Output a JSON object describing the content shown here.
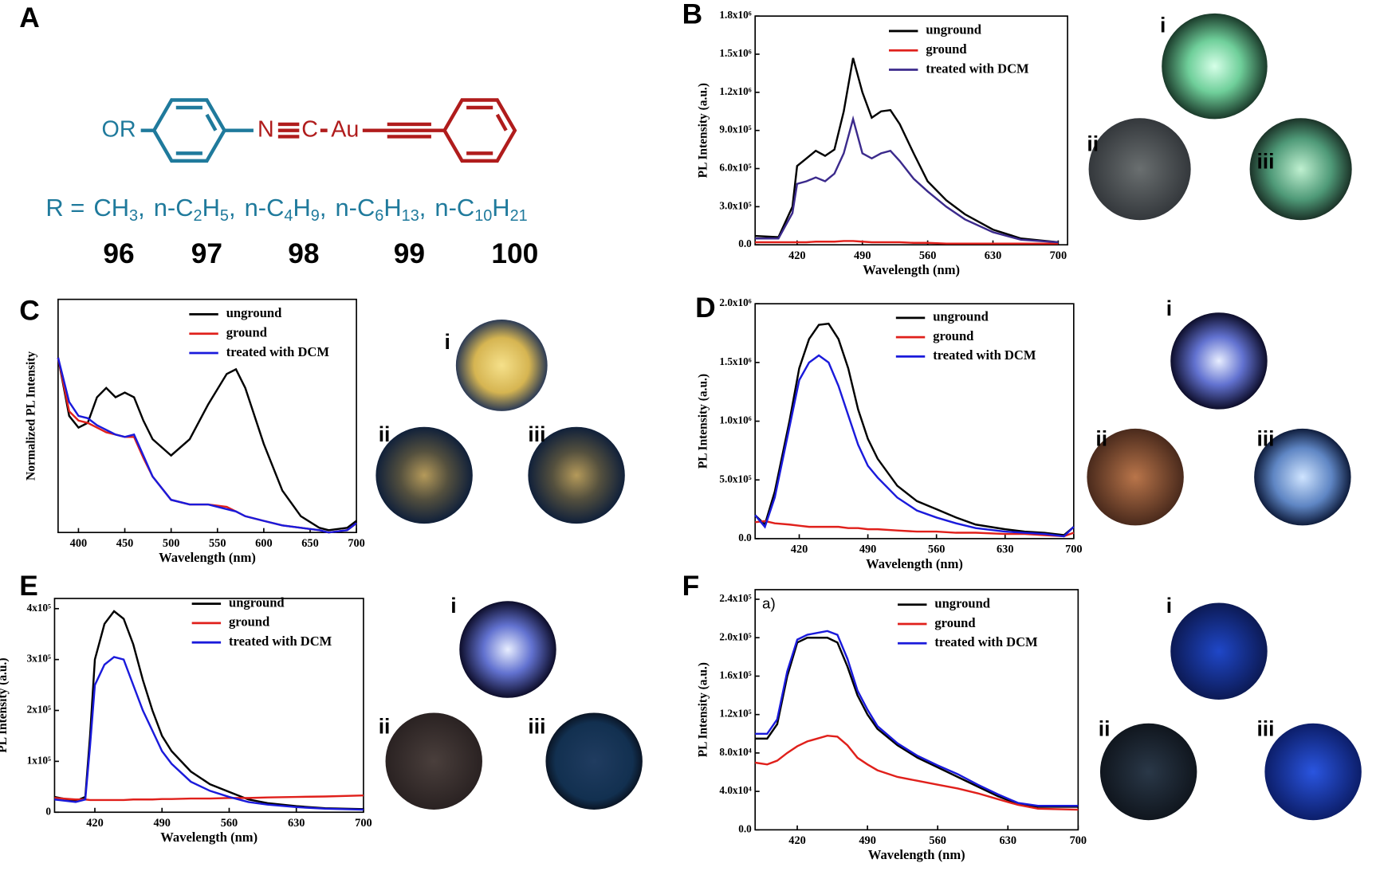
{
  "panel_a": {
    "label": "A",
    "substituent": "OR",
    "n": "N",
    "c": "C",
    "metal": "Au",
    "r_label": "R =",
    "r_groups": [
      [
        "CH",
        "3",
        ","
      ],
      [
        "n-C",
        "2",
        "H",
        "5",
        ","
      ],
      [
        "n-C",
        "4",
        "H",
        "9",
        ","
      ],
      [
        "n-C",
        "6",
        "H",
        "13",
        ","
      ],
      [
        "n-C",
        "10",
        "H",
        "21"
      ]
    ],
    "compounds": [
      "96",
      "97",
      "98",
      "99",
      "100"
    ]
  },
  "chart_data": [
    {
      "type": "line",
      "label": "B",
      "xlabel": "Wavelength (nm)",
      "ylabel": "PL Intensity (a.u.)",
      "xlim": [
        375,
        710
      ],
      "xticks": [
        420,
        490,
        560,
        630,
        700
      ],
      "ylim": [
        0,
        1800000
      ],
      "yticks": [
        {
          "value": 0,
          "label": "0.0"
        },
        {
          "value": 300000,
          "label": "3.0x10⁵"
        },
        {
          "value": 600000,
          "label": "6.0x10⁵"
        },
        {
          "value": 900000,
          "label": "9.0x10⁵"
        },
        {
          "value": 1200000,
          "label": "1.2x10⁶"
        },
        {
          "value": 1500000,
          "label": "1.5x10⁶"
        },
        {
          "value": 1800000,
          "label": "1.8x10⁶"
        }
      ],
      "x": [
        375,
        400,
        415,
        420,
        430,
        440,
        450,
        460,
        470,
        480,
        490,
        500,
        510,
        520,
        530,
        545,
        560,
        580,
        600,
        630,
        660,
        700
      ],
      "series": [
        {
          "name": "unground",
          "color": "#000000",
          "values": [
            70000,
            60000,
            300000,
            620000,
            680000,
            740000,
            700000,
            750000,
            1050000,
            1470000,
            1200000,
            1000000,
            1050000,
            1060000,
            950000,
            720000,
            500000,
            350000,
            240000,
            120000,
            50000,
            20000
          ]
        },
        {
          "name": "ground",
          "color": "#e0201b",
          "values": [
            20000,
            20000,
            20000,
            20000,
            20000,
            25000,
            25000,
            25000,
            30000,
            30000,
            25000,
            20000,
            20000,
            20000,
            20000,
            15000,
            15000,
            10000,
            10000,
            10000,
            10000,
            10000
          ]
        },
        {
          "name": "treated with DCM",
          "color": "#3b2a8c",
          "values": [
            50000,
            50000,
            250000,
            480000,
            500000,
            530000,
            500000,
            560000,
            720000,
            990000,
            720000,
            680000,
            720000,
            740000,
            660000,
            520000,
            420000,
            300000,
            200000,
            100000,
            40000,
            20000
          ]
        }
      ],
      "image_labels": [
        "i",
        "ii",
        "iii"
      ]
    },
    {
      "type": "line",
      "label": "C",
      "xlabel": "Wavelength (nm)",
      "ylabel": "Normalized PL Intensity",
      "xlim": [
        378,
        700
      ],
      "xticks": [
        400,
        450,
        500,
        550,
        600,
        650,
        700
      ],
      "ylim": [
        0,
        1
      ],
      "x": [
        378,
        390,
        400,
        410,
        420,
        430,
        440,
        450,
        460,
        470,
        480,
        500,
        520,
        540,
        560,
        570,
        580,
        600,
        620,
        640,
        660,
        670,
        690,
        700
      ],
      "series": [
        {
          "name": "unground",
          "color": "#000000",
          "values": [
            0.75,
            0.5,
            0.45,
            0.47,
            0.58,
            0.62,
            0.58,
            0.6,
            0.58,
            0.48,
            0.4,
            0.33,
            0.4,
            0.55,
            0.68,
            0.7,
            0.62,
            0.38,
            0.18,
            0.07,
            0.02,
            0.01,
            0.02,
            0.05
          ]
        },
        {
          "name": "ground",
          "color": "#e0201b",
          "values": [
            0.75,
            0.52,
            0.48,
            0.47,
            0.45,
            0.43,
            0.42,
            0.41,
            0.41,
            0.32,
            0.24,
            0.14,
            0.12,
            0.12,
            0.11,
            0.09,
            0.07,
            0.05,
            0.03,
            0.02,
            0.01,
            0.0,
            0.01,
            0.04
          ]
        },
        {
          "name": "treated with DCM",
          "color": "#1a1adb",
          "values": [
            0.75,
            0.56,
            0.5,
            0.49,
            0.46,
            0.44,
            0.42,
            0.41,
            0.42,
            0.33,
            0.24,
            0.14,
            0.12,
            0.12,
            0.1,
            0.09,
            0.07,
            0.05,
            0.03,
            0.02,
            0.01,
            0.0,
            0.01,
            0.04
          ]
        }
      ],
      "image_labels": [
        "i",
        "ii",
        "iii"
      ]
    },
    {
      "type": "line",
      "label": "D",
      "xlabel": "Wavelength (nm)",
      "ylabel": "PL Intensity (a.u.)",
      "xlim": [
        375,
        700
      ],
      "xticks": [
        420,
        490,
        560,
        630,
        700
      ],
      "ylim": [
        0,
        2000000
      ],
      "yticks": [
        {
          "value": 0,
          "label": "0.0"
        },
        {
          "value": 500000,
          "label": "5.0x10⁵"
        },
        {
          "value": 1000000,
          "label": "1.0x10⁶"
        },
        {
          "value": 1500000,
          "label": "1.5x10⁶"
        },
        {
          "value": 2000000,
          "label": "2.0x10⁶"
        }
      ],
      "x": [
        375,
        385,
        395,
        410,
        420,
        430,
        440,
        450,
        460,
        470,
        480,
        490,
        500,
        520,
        540,
        560,
        580,
        600,
        630,
        650,
        670,
        690,
        700
      ],
      "series": [
        {
          "name": "unground",
          "color": "#000000",
          "values": [
            200000,
            120000,
            400000,
            1000000,
            1450000,
            1700000,
            1820000,
            1830000,
            1700000,
            1450000,
            1100000,
            850000,
            680000,
            450000,
            320000,
            250000,
            180000,
            120000,
            80000,
            60000,
            50000,
            30000,
            100000
          ]
        },
        {
          "name": "ground",
          "color": "#e0201b",
          "values": [
            140000,
            150000,
            130000,
            120000,
            110000,
            100000,
            100000,
            100000,
            100000,
            90000,
            90000,
            80000,
            80000,
            70000,
            60000,
            60000,
            50000,
            50000,
            40000,
            40000,
            30000,
            20000,
            50000
          ]
        },
        {
          "name": "treated with DCM",
          "color": "#1a1adb",
          "values": [
            200000,
            100000,
            350000,
            950000,
            1350000,
            1500000,
            1560000,
            1500000,
            1300000,
            1050000,
            800000,
            620000,
            520000,
            350000,
            240000,
            180000,
            130000,
            90000,
            60000,
            50000,
            40000,
            20000,
            100000
          ]
        }
      ],
      "image_labels": [
        "i",
        "ii",
        "iii"
      ]
    },
    {
      "type": "line",
      "label": "E",
      "xlabel": "Wavelength (nm)",
      "ylabel": "PL Intensity (a.u.)",
      "xlim": [
        378,
        700
      ],
      "xticks": [
        420,
        490,
        560,
        630,
        700
      ],
      "ylim": [
        0,
        420000
      ],
      "yticks": [
        0,
        {
          "value": 100000,
          "label": "1x10⁵"
        },
        {
          "value": 200000,
          "label": "2x10⁵"
        },
        {
          "value": 300000,
          "label": "3x10⁵"
        },
        {
          "value": 400000,
          "label": "4x10⁵"
        }
      ],
      "x": [
        378,
        400,
        410,
        415,
        420,
        430,
        440,
        450,
        460,
        470,
        480,
        490,
        500,
        520,
        540,
        560,
        580,
        600,
        630,
        660,
        700
      ],
      "series": [
        {
          "name": "unground",
          "color": "#000000",
          "values": [
            30000,
            22000,
            30000,
            150000,
            300000,
            370000,
            395000,
            380000,
            330000,
            260000,
            200000,
            150000,
            120000,
            80000,
            55000,
            40000,
            25000,
            18000,
            12000,
            8000,
            6000
          ]
        },
        {
          "name": "ground",
          "color": "#e0201b",
          "values": [
            28000,
            25000,
            25000,
            24000,
            24000,
            24000,
            24000,
            24000,
            25000,
            25000,
            25000,
            26000,
            26000,
            27000,
            27000,
            28000,
            28000,
            29000,
            30000,
            31000,
            33000
          ]
        },
        {
          "name": "treated with DCM",
          "color": "#1a1adb",
          "values": [
            25000,
            20000,
            25000,
            130000,
            250000,
            290000,
            305000,
            300000,
            250000,
            200000,
            160000,
            120000,
            95000,
            60000,
            42000,
            30000,
            20000,
            15000,
            10000,
            7000,
            5000
          ]
        }
      ],
      "image_labels": [
        "i",
        "ii",
        "iii"
      ]
    },
    {
      "type": "line",
      "label": "F",
      "annotation": "a)",
      "xlabel": "Wavelength (nm)",
      "ylabel": "PL Intensity (a.u.)",
      "xlim": [
        378,
        700
      ],
      "xticks": [
        420,
        490,
        560,
        630,
        700
      ],
      "ylim": [
        0,
        250000
      ],
      "yticks": [
        {
          "value": 0,
          "label": "0.0"
        },
        {
          "value": 40000,
          "label": "4.0x10⁴"
        },
        {
          "value": 80000,
          "label": "8.0x10⁴"
        },
        {
          "value": 120000,
          "label": "1.2x10⁵"
        },
        {
          "value": 160000,
          "label": "1.6x10⁵"
        },
        {
          "value": 200000,
          "label": "2.0x10⁵"
        },
        {
          "value": 240000,
          "label": "2.4x10⁵"
        }
      ],
      "x": [
        378,
        390,
        400,
        410,
        420,
        430,
        440,
        450,
        460,
        470,
        480,
        490,
        500,
        520,
        540,
        560,
        580,
        600,
        620,
        640,
        660,
        700
      ],
      "series": [
        {
          "name": "unground",
          "color": "#000000",
          "values": [
            95000,
            95000,
            110000,
            160000,
            195000,
            200000,
            200000,
            200000,
            195000,
            170000,
            140000,
            120000,
            105000,
            88000,
            75000,
            65000,
            55000,
            45000,
            35000,
            27000,
            24000,
            24000
          ]
        },
        {
          "name": "ground",
          "color": "#e0201b",
          "values": [
            70000,
            68000,
            72000,
            80000,
            87000,
            92000,
            95000,
            98000,
            97000,
            88000,
            75000,
            68000,
            62000,
            55000,
            51000,
            47000,
            43000,
            38000,
            32000,
            26000,
            22000,
            21000
          ]
        },
        {
          "name": "treated with DCM",
          "color": "#1a1adb",
          "values": [
            100000,
            100000,
            115000,
            165000,
            198000,
            203000,
            205000,
            207000,
            203000,
            178000,
            145000,
            125000,
            108000,
            90000,
            77000,
            67000,
            58000,
            47000,
            37000,
            28000,
            25000,
            25000
          ]
        }
      ],
      "image_labels": [
        "i",
        "ii",
        "iii"
      ]
    }
  ]
}
